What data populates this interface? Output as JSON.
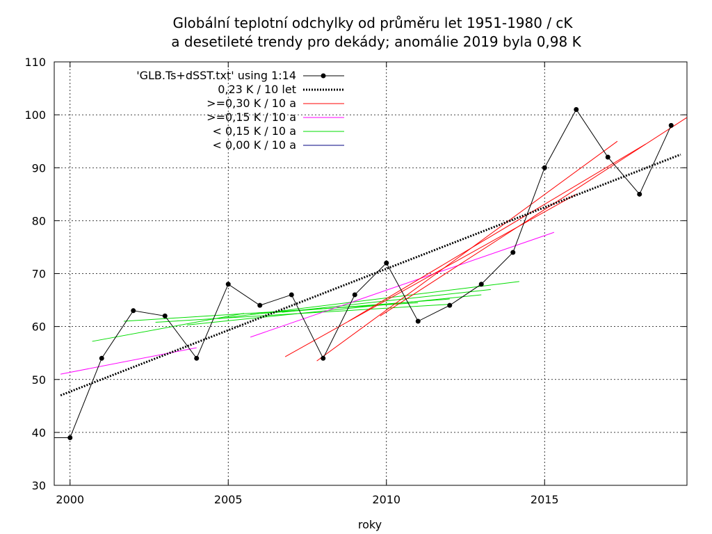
{
  "chart_data": {
    "type": "line",
    "title_line1": "Globální teplotní odchylky od průměru let 1951-1980 / cK",
    "title_line2": "a desetileté trendy pro dekády; anomálie 2019 byla 0,98 K",
    "xlabel": "roky",
    "ylabel": "",
    "xlim": [
      1999.5,
      2019.5
    ],
    "ylim": [
      30,
      110
    ],
    "x_ticks": [
      2000,
      2005,
      2010,
      2015
    ],
    "y_ticks": [
      30,
      40,
      50,
      60,
      70,
      80,
      90,
      100,
      110
    ],
    "grid": true,
    "legend_position": "top-left",
    "series": [
      {
        "name": "'GLB.Ts+dSST.txt' using 1:14",
        "color": "#000000",
        "style": "line-points",
        "x": [
          2000,
          2001,
          2002,
          2003,
          2004,
          2005,
          2006,
          2007,
          2008,
          2009,
          2010,
          2011,
          2012,
          2013,
          2014,
          2015,
          2016,
          2017,
          2018,
          2019
        ],
        "y": [
          39,
          54,
          63,
          62,
          54,
          68,
          64,
          66,
          54,
          66,
          72,
          61,
          64,
          68,
          74,
          90,
          101,
          92,
          85,
          98
        ]
      }
    ],
    "overall_trend": {
      "name": "0,23 K / 10 let",
      "color": "#000000",
      "style": "dotted",
      "x": [
        1999.7,
        2019.3
      ],
      "y": [
        47,
        92.5
      ]
    },
    "trend_categories": [
      {
        "name": ">=0,30 K / 10 a",
        "color": "#ff0000"
      },
      {
        "name": ">=0,15 K / 10 a",
        "color": "#ff00ff"
      },
      {
        "name": "< 0,15 K / 10 a",
        "color": "#00dd00"
      },
      {
        "name": "< 0,00 K / 10 a",
        "color": "#000080"
      }
    ],
    "trend_segments": [
      {
        "color": "#ff00ff",
        "x": [
          1999.7,
          2004.0
        ],
        "y": [
          51,
          56
        ]
      },
      {
        "color": "#00dd00",
        "x": [
          2000.7,
          2005.5
        ],
        "y": [
          57.2,
          62.5
        ]
      },
      {
        "color": "#00dd00",
        "x": [
          2001.7,
          2011.0
        ],
        "y": [
          61,
          64.5
        ]
      },
      {
        "color": "#00dd00",
        "x": [
          2002.7,
          2012.0
        ],
        "y": [
          60.8,
          64.2
        ]
      },
      {
        "color": "#00dd00",
        "x": [
          2003.7,
          2013.0
        ],
        "y": [
          60.3,
          66
        ]
      },
      {
        "color": "#00dd00",
        "x": [
          2004.7,
          2014.2
        ],
        "y": [
          61.5,
          68.5
        ]
      },
      {
        "color": "#00dd00",
        "x": [
          2005.7,
          2012.0
        ],
        "y": [
          62.3,
          65.2
        ]
      },
      {
        "color": "#00dd00",
        "x": [
          2006.7,
          2013.3
        ],
        "y": [
          62.7,
          67
        ]
      },
      {
        "color": "#ff00ff",
        "x": [
          2005.7,
          2015.3
        ],
        "y": [
          58,
          77.8
        ]
      },
      {
        "color": "#ff0000",
        "x": [
          2006.8,
          2016.0
        ],
        "y": [
          54.3,
          85
        ]
      },
      {
        "color": "#ff0000",
        "x": [
          2007.8,
          2017.3
        ],
        "y": [
          53.5,
          95
        ]
      },
      {
        "color": "#ff0000",
        "x": [
          2008.8,
          2018.2
        ],
        "y": [
          61,
          94.5
        ]
      },
      {
        "color": "#ff0000",
        "x": [
          2009.8,
          2019.5
        ],
        "y": [
          62,
          99.5
        ]
      }
    ]
  }
}
